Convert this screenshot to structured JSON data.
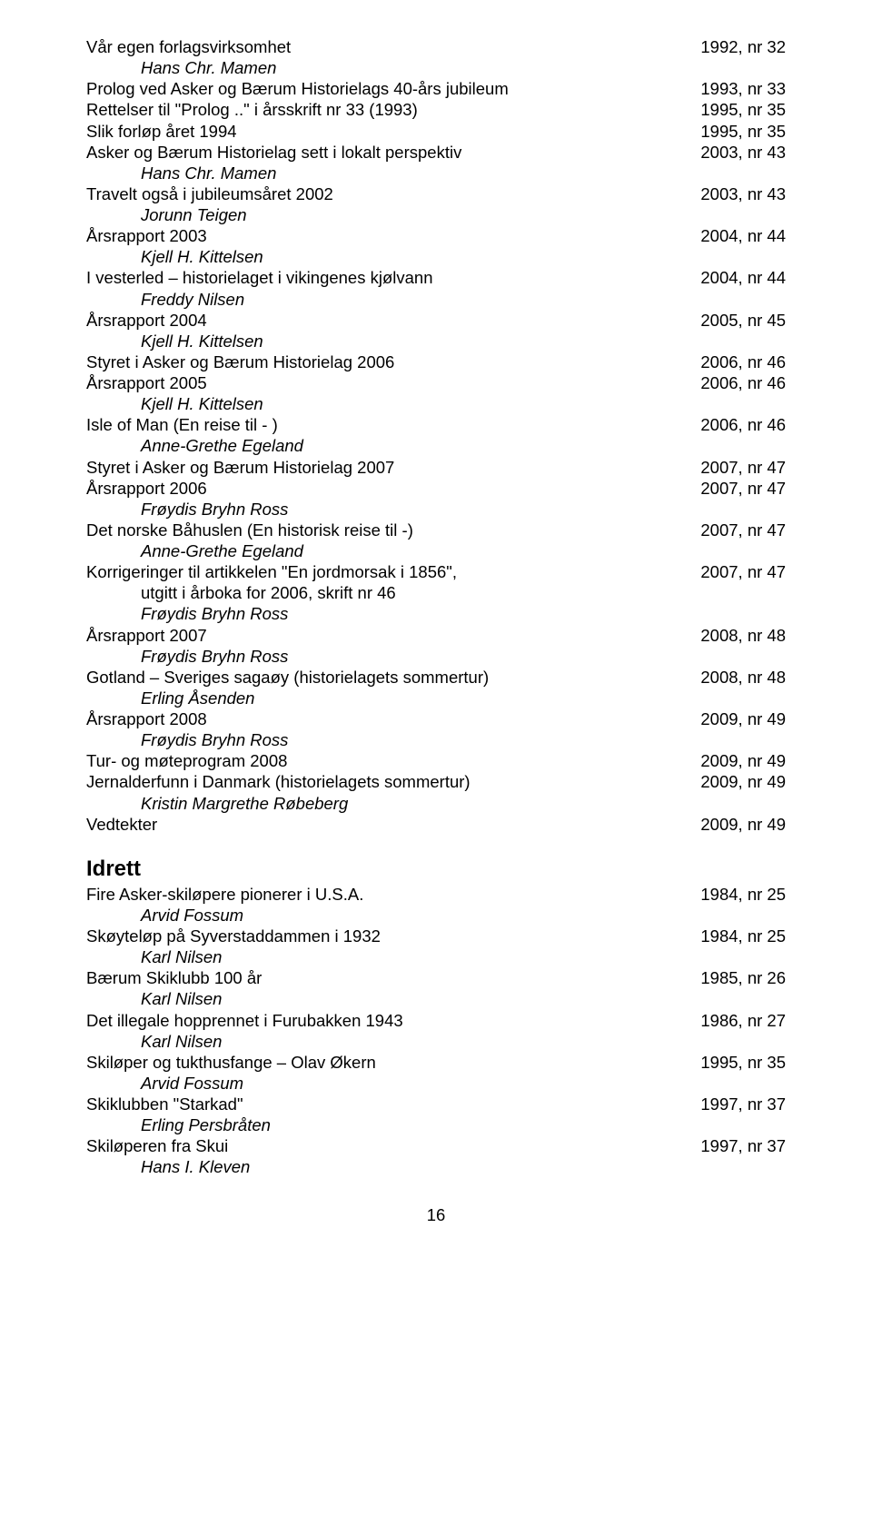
{
  "entries": [
    {
      "title": "Vår egen forlagsvirksomhet",
      "ref": "1992, nr 32",
      "author": "Hans Chr. Mamen"
    },
    {
      "title": "Prolog ved Asker og Bærum Historielags 40-års jubileum",
      "ref": "1993, nr 33"
    },
    {
      "title": "Rettelser til \"Prolog ..\" i årsskrift nr 33 (1993)",
      "ref": "1995, nr 35"
    },
    {
      "title": "Slik forløp året 1994",
      "ref": "1995, nr 35"
    },
    {
      "title": "Asker og Bærum Historielag sett i lokalt perspektiv",
      "ref": "2003, nr 43",
      "author": "Hans Chr. Mamen"
    },
    {
      "title": "Travelt også i jubileumsåret 2002",
      "ref": "2003, nr 43",
      "author": "Jorunn Teigen"
    },
    {
      "title": "Årsrapport 2003",
      "ref": "2004, nr 44",
      "author": "Kjell H. Kittelsen"
    },
    {
      "title": "I vesterled – historielaget i vikingenes kjølvann",
      "ref": "2004, nr 44",
      "author": "Freddy Nilsen"
    },
    {
      "title": "Årsrapport 2004",
      "ref": "2005, nr 45",
      "author": "Kjell H. Kittelsen"
    },
    {
      "title": "Styret i Asker og Bærum Historielag 2006",
      "ref": "2006, nr 46"
    },
    {
      "title": "Årsrapport 2005",
      "ref": "2006, nr 46",
      "author": "Kjell H. Kittelsen"
    },
    {
      "title": "Isle of Man (En reise til - )",
      "ref": "2006, nr 46",
      "author": "Anne-Grethe Egeland"
    },
    {
      "title": "Styret i Asker og Bærum Historielag 2007",
      "ref": "2007, nr 47"
    },
    {
      "title": "Årsrapport 2006",
      "ref": "2007, nr 47",
      "author": "Frøydis Bryhn Ross"
    },
    {
      "title": "Det norske Båhuslen (En historisk reise til -)",
      "ref": "2007, nr 47",
      "author": "Anne-Grethe Egeland"
    },
    {
      "title": "Korrigeringer til artikkelen \"En jordmorsak i 1856\",",
      "ref": "2007, nr 47",
      "cont": "utgitt i årboka for 2006, skrift nr 46",
      "author": "Frøydis Bryhn Ross"
    },
    {
      "title": "Årsrapport 2007",
      "ref": "2008, nr 48",
      "author": "Frøydis Bryhn Ross"
    },
    {
      "title": "Gotland – Sveriges sagaøy (historielagets sommertur)",
      "ref": "2008, nr 48",
      "author": "Erling Åsenden"
    },
    {
      "title": "Årsrapport 2008",
      "ref": "2009, nr 49",
      "author": "Frøydis Bryhn Ross"
    },
    {
      "title": "Tur- og møteprogram 2008",
      "ref": "2009, nr 49"
    },
    {
      "title": "Jernalderfunn i Danmark (historielagets sommertur)",
      "ref": "2009, nr 49",
      "author": "Kristin Margrethe Røbeberg"
    },
    {
      "title": "Vedtekter",
      "ref": "2009, nr 49"
    }
  ],
  "section2_heading": "Idrett",
  "entries2": [
    {
      "title": "Fire Asker-skiløpere pionerer i U.S.A.",
      "ref": "1984, nr 25",
      "author": "Arvid Fossum"
    },
    {
      "title": "Skøyteløp på Syverstaddammen i 1932",
      "ref": "1984, nr 25",
      "author": "Karl Nilsen"
    },
    {
      "title": "Bærum Skiklubb 100 år",
      "ref": "1985, nr 26",
      "author": "Karl Nilsen"
    },
    {
      "title": "Det illegale hopprennet i Furubakken 1943",
      "ref": "1986, nr 27",
      "author": "Karl Nilsen"
    },
    {
      "title": "Skiløper og tukthusfange – Olav Økern",
      "ref": "1995, nr 35",
      "author": "Arvid Fossum"
    },
    {
      "title": "Skiklubben \"Starkad\"",
      "ref": "1997, nr 37",
      "author": "Erling Persbråten"
    },
    {
      "title": "Skiløperen fra Skui",
      "ref": "1997, nr 37",
      "author": "Hans I. Kleven"
    }
  ],
  "page_number": "16"
}
